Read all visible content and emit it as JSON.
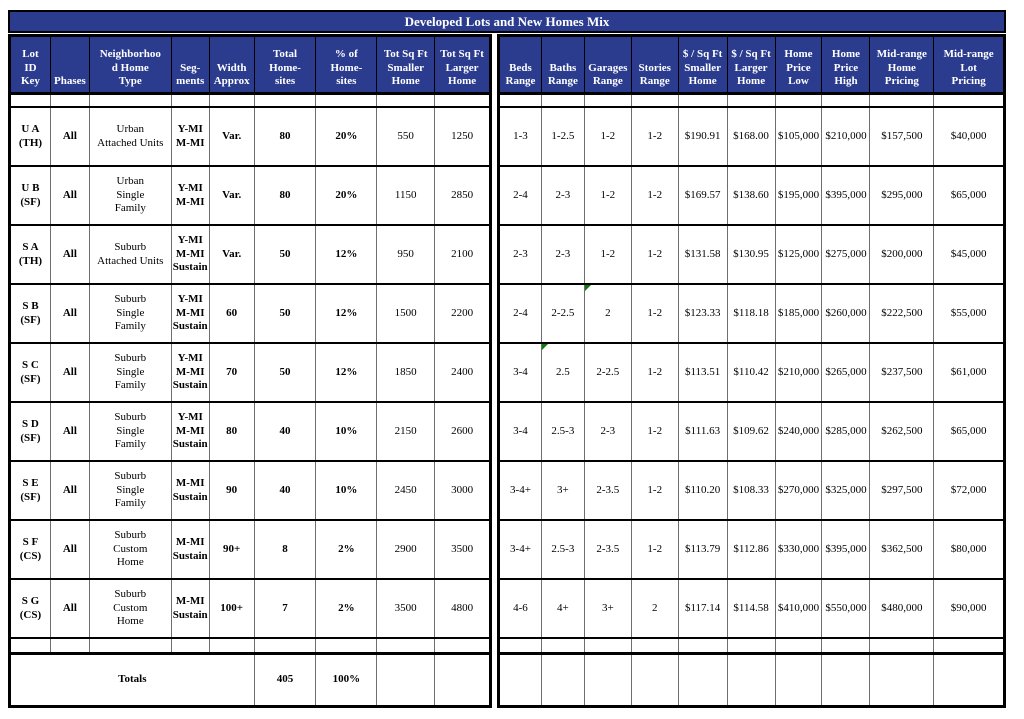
{
  "title": "Developed Lots and New Homes Mix",
  "colors": {
    "header_bg": "#2B3C8E",
    "header_text": "#FFFFFF",
    "grid_thin": "#6e6e6e",
    "grid_thick": "#000000",
    "flag_green": "#0a7a0a"
  },
  "header": {
    "left": [
      "Lot\nID\nKey",
      "Phases",
      "Neighborhoo\nd Home\nType",
      "Seg-\nments",
      "Width\nApprox",
      "Total\nHome-\nsites",
      "% of\nHome-\nsites",
      "Tot Sq Ft\nSmaller\nHome",
      "Tot Sq Ft\nLarger\nHome"
    ],
    "right": [
      "Beds\nRange",
      "Baths\nRange",
      "Garages\nRange",
      "Stories\nRange",
      "$ / Sq Ft\nSmaller\nHome",
      "$ / Sq Ft\nLarger\nHome",
      "Home\nPrice\nLow",
      "Home\nPrice\nHigh",
      "Mid-range\nHome\nPricing",
      "Mid-range\nLot\nPricing"
    ]
  },
  "rows": [
    {
      "left": [
        "U A\n(TH)",
        "All",
        "Urban\nAttached Units",
        "Y-MI\nM-MI",
        "Var.",
        "80",
        "20%",
        "550",
        "1250"
      ],
      "right": [
        "1-3",
        "1-2.5",
        "1-2",
        "1-2",
        "$190.91",
        "$168.00",
        "$105,000",
        "$210,000",
        "$157,500",
        "$40,000"
      ],
      "flags_right": []
    },
    {
      "left": [
        "U B\n(SF)",
        "All",
        "Urban\nSingle\nFamily",
        "Y-MI\nM-MI",
        "Var.",
        "80",
        "20%",
        "1150",
        "2850"
      ],
      "right": [
        "2-4",
        "2-3",
        "1-2",
        "1-2",
        "$169.57",
        "$138.60",
        "$195,000",
        "$395,000",
        "$295,000",
        "$65,000"
      ],
      "flags_right": []
    },
    {
      "left": [
        "S A\n(TH)",
        "All",
        "Suburb\nAttached Units",
        "Y-MI\nM-MI\nSustain",
        "Var.",
        "50",
        "12%",
        "950",
        "2100"
      ],
      "right": [
        "2-3",
        "2-3",
        "1-2",
        "1-2",
        "$131.58",
        "$130.95",
        "$125,000",
        "$275,000",
        "$200,000",
        "$45,000"
      ],
      "flags_right": []
    },
    {
      "left": [
        "S B\n(SF)",
        "All",
        "Suburb\nSingle\nFamily",
        "Y-MI\nM-MI\nSustain",
        "60",
        "50",
        "12%",
        "1500",
        "2200"
      ],
      "right": [
        "2-4",
        "2-2.5",
        "2",
        "1-2",
        "$123.33",
        "$118.18",
        "$185,000",
        "$260,000",
        "$222,500",
        "$55,000"
      ],
      "flags_right": [
        2
      ]
    },
    {
      "left": [
        "S C\n(SF)",
        "All",
        "Suburb\nSingle\nFamily",
        "Y-MI\nM-MI\nSustain",
        "70",
        "50",
        "12%",
        "1850",
        "2400"
      ],
      "right": [
        "3-4",
        "2.5",
        "2-2.5",
        "1-2",
        "$113.51",
        "$110.42",
        "$210,000",
        "$265,000",
        "$237,500",
        "$61,000"
      ],
      "flags_right": [
        1
      ]
    },
    {
      "left": [
        "S D\n(SF)",
        "All",
        "Suburb\nSingle\nFamily",
        "Y-MI\nM-MI\nSustain",
        "80",
        "40",
        "10%",
        "2150",
        "2600"
      ],
      "right": [
        "3-4",
        "2.5-3",
        "2-3",
        "1-2",
        "$111.63",
        "$109.62",
        "$240,000",
        "$285,000",
        "$262,500",
        "$65,000"
      ],
      "flags_right": []
    },
    {
      "left": [
        "S E\n(SF)",
        "All",
        "Suburb\nSingle\nFamily",
        "M-MI\nSustain",
        "90",
        "40",
        "10%",
        "2450",
        "3000"
      ],
      "right": [
        "3-4+",
        "3+",
        "2-3.5",
        "1-2",
        "$110.20",
        "$108.33",
        "$270,000",
        "$325,000",
        "$297,500",
        "$72,000"
      ],
      "flags_right": []
    },
    {
      "left": [
        "S F\n(CS)",
        "All",
        "Suburb\nCustom\nHome",
        "M-MI\nSustain",
        "90+",
        "8",
        "2%",
        "2900",
        "3500"
      ],
      "right": [
        "3-4+",
        "2.5-3",
        "2-3.5",
        "1-2",
        "$113.79",
        "$112.86",
        "$330,000",
        "$395,000",
        "$362,500",
        "$80,000"
      ],
      "flags_right": []
    },
    {
      "left": [
        "S G\n(CS)",
        "All",
        "Suburb\nCustom\nHome",
        "M-MI\nSustain",
        "100+",
        "7",
        "2%",
        "3500",
        "4800"
      ],
      "right": [
        "4-6",
        "4+",
        "3+",
        "2",
        "$117.14",
        "$114.58",
        "$410,000",
        "$550,000",
        "$480,000",
        "$90,000"
      ],
      "flags_right": []
    }
  ],
  "totals": {
    "label": "Totals",
    "total_homesites": "405",
    "pct_homesites": "100%"
  }
}
